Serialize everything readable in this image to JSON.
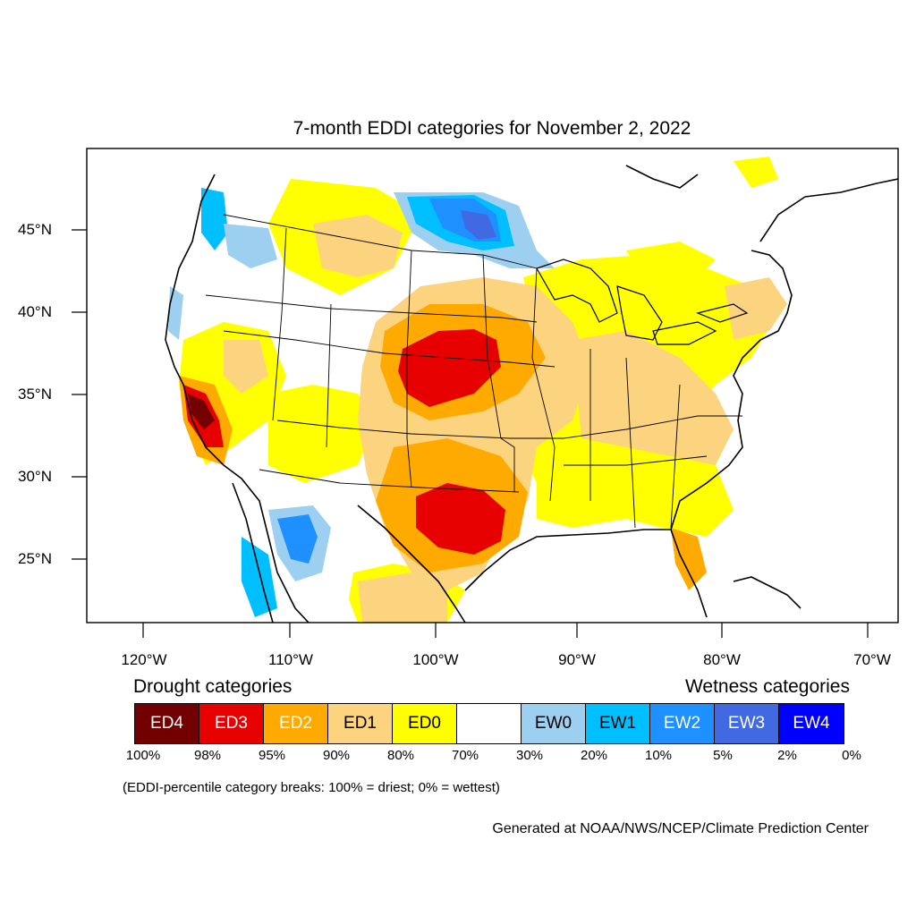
{
  "title": "7-month EDDI categories for November 2, 2022",
  "lat_labels": [
    "45°N",
    "40°N",
    "35°N",
    "30°N",
    "25°N"
  ],
  "lon_labels": [
    "120°W",
    "110°W",
    "100°W",
    "90°W",
    "80°W",
    "70°W"
  ],
  "legend": {
    "drought_heading": "Drought categories",
    "wetness_heading": "Wetness categories",
    "categories": [
      {
        "label": "ED4",
        "color": "#730000",
        "text_color": "#ffffff"
      },
      {
        "label": "ED3",
        "color": "#e60000",
        "text_color": "#ffffff"
      },
      {
        "label": "ED2",
        "color": "#ffaa00",
        "text_color": "#ffffff"
      },
      {
        "label": "ED1",
        "color": "#fcd37f",
        "text_color": "#000000"
      },
      {
        "label": "ED0",
        "color": "#ffff00",
        "text_color": "#000000"
      },
      {
        "label": "",
        "color": "#ffffff",
        "text_color": "#000000"
      },
      {
        "label": "EW0",
        "color": "#9dcff0",
        "text_color": "#000000"
      },
      {
        "label": "EW1",
        "color": "#00bfff",
        "text_color": "#000000"
      },
      {
        "label": "EW2",
        "color": "#1e90ff",
        "text_color": "#ffffff"
      },
      {
        "label": "EW3",
        "color": "#4169e1",
        "text_color": "#ffffff"
      },
      {
        "label": "EW4",
        "color": "#0000ff",
        "text_color": "#ffffff"
      }
    ],
    "percent_breaks": [
      "100%",
      "98%",
      "95%",
      "90%",
      "80%",
      "70%",
      "30%",
      "20%",
      "10%",
      "5%",
      "2%",
      "0%"
    ]
  },
  "breaks_note": "(EDDI-percentile category breaks: 100% = driest; 0% = wettest)",
  "credit": "Generated at NOAA/NWS/NCEP/Climate Prediction Center"
}
